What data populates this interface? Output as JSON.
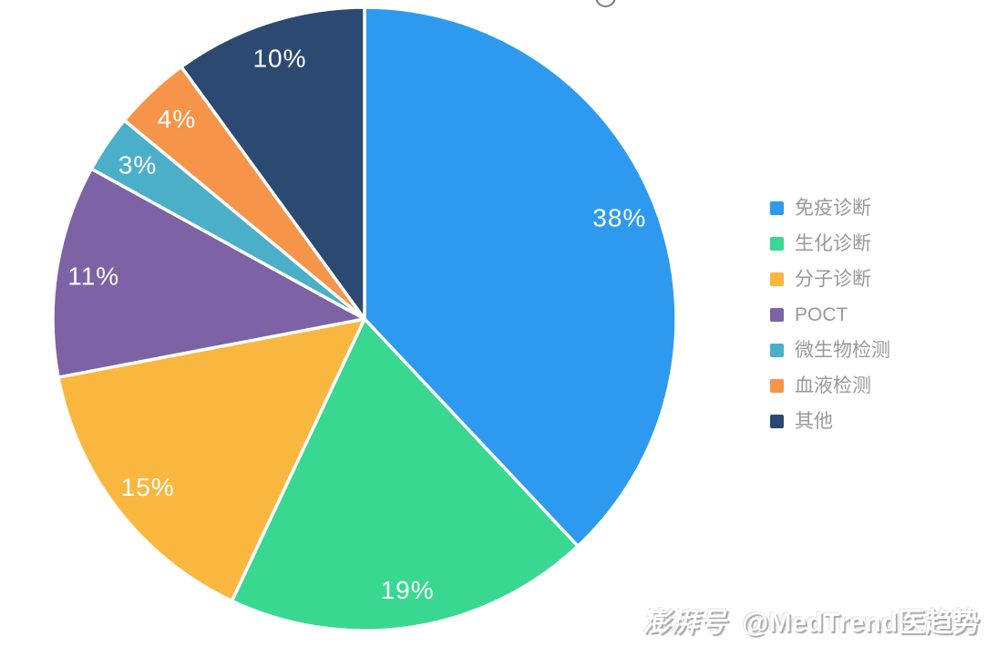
{
  "page": {
    "background": "#ffffff"
  },
  "decor": {
    "top_partial_circle_icon": "circle-outline-icon",
    "top_partial_circle_color": "#7b7b7b"
  },
  "chart_data": {
    "type": "pie",
    "title": "",
    "direction": "clockwise",
    "start_angle_deg": 0,
    "value_suffix": "%",
    "label_color": "#ffffff",
    "slice_border_color": "#ffffff",
    "legend_position": "right",
    "legend_text_color": "#999999",
    "series": [
      {
        "label": "免疫诊断",
        "value": 38,
        "color": "#2D9AF0"
      },
      {
        "label": "生化诊断",
        "value": 19,
        "color": "#38D890"
      },
      {
        "label": "分子诊断",
        "value": 15,
        "color": "#FAB740"
      },
      {
        "label": "POCT",
        "value": 11,
        "color": "#7D62A5"
      },
      {
        "label": "微生物检测",
        "value": 3,
        "color": "#4BAFC9"
      },
      {
        "label": "血液检测",
        "value": 4,
        "color": "#F6944A"
      },
      {
        "label": "其他",
        "value": 10,
        "color": "#2C4A71"
      }
    ]
  },
  "watermark": {
    "logo_text": "澎湃号",
    "account_text": "@MedTrend医趋势"
  }
}
